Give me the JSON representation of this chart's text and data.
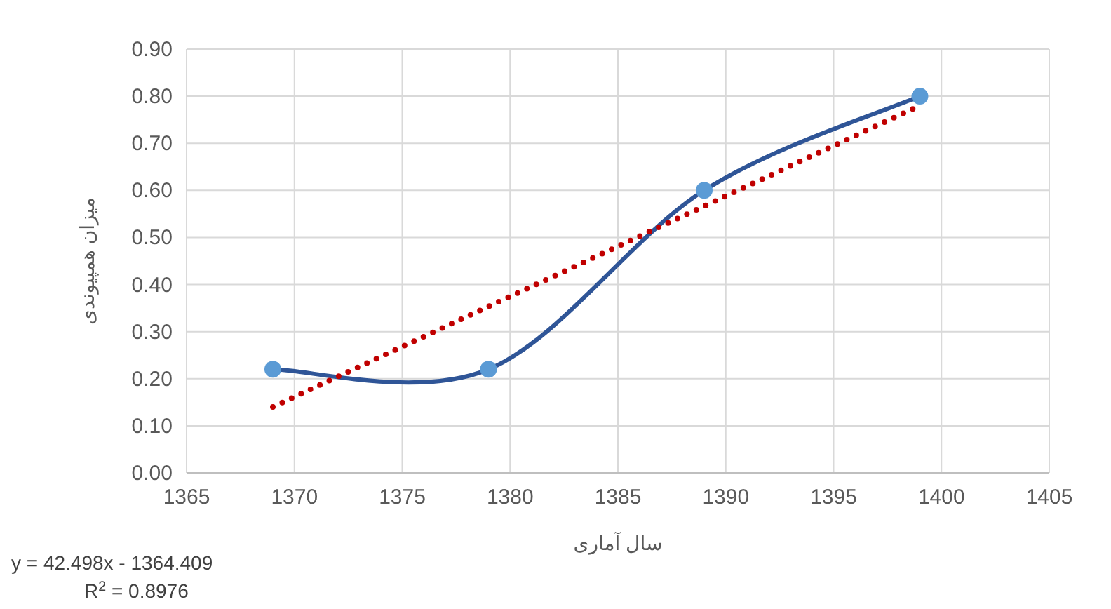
{
  "chart_data": {
    "type": "line",
    "xlabel": "سال آماری",
    "ylabel": "میزان همپیوندی",
    "x": [
      1369,
      1379,
      1389,
      1399
    ],
    "series": [
      {
        "color": "#2f5597",
        "values": [
          0.22,
          0.22,
          0.6,
          0.8
        ],
        "marker": "circle",
        "line_style": "solid"
      },
      {
        "type": "line",
        "color": "#c00000",
        "x": [
          1369,
          1399
        ],
        "values": [
          0.14,
          0.78
        ],
        "marker": "none",
        "line_style": "dotted"
      }
    ],
    "xlim": [
      1365,
      1405
    ],
    "xticks": [
      1365,
      1370,
      1375,
      1380,
      1385,
      1390,
      1395,
      1400,
      1405
    ],
    "ylim": [
      0,
      0.9
    ],
    "yticks": [
      {
        "value": 0,
        "label": "0.00"
      },
      {
        "value": 0.1,
        "label": "0.10"
      },
      {
        "value": 0.2,
        "label": "0.20"
      },
      {
        "value": 0.3,
        "label": "0.30"
      },
      {
        "value": 0.4,
        "label": "0.40"
      },
      {
        "value": 0.5,
        "label": "0.50"
      },
      {
        "value": 0.6,
        "label": "0.60"
      },
      {
        "value": 0.7,
        "label": "0.70"
      },
      {
        "value": 0.8,
        "label": "0.80"
      },
      {
        "value": 0.9,
        "label": "0.90"
      }
    ],
    "grid": true,
    "annotations": [
      "y = 42.498x - 1364.409",
      "R$^{2}$ = 0.8976"
    ]
  }
}
